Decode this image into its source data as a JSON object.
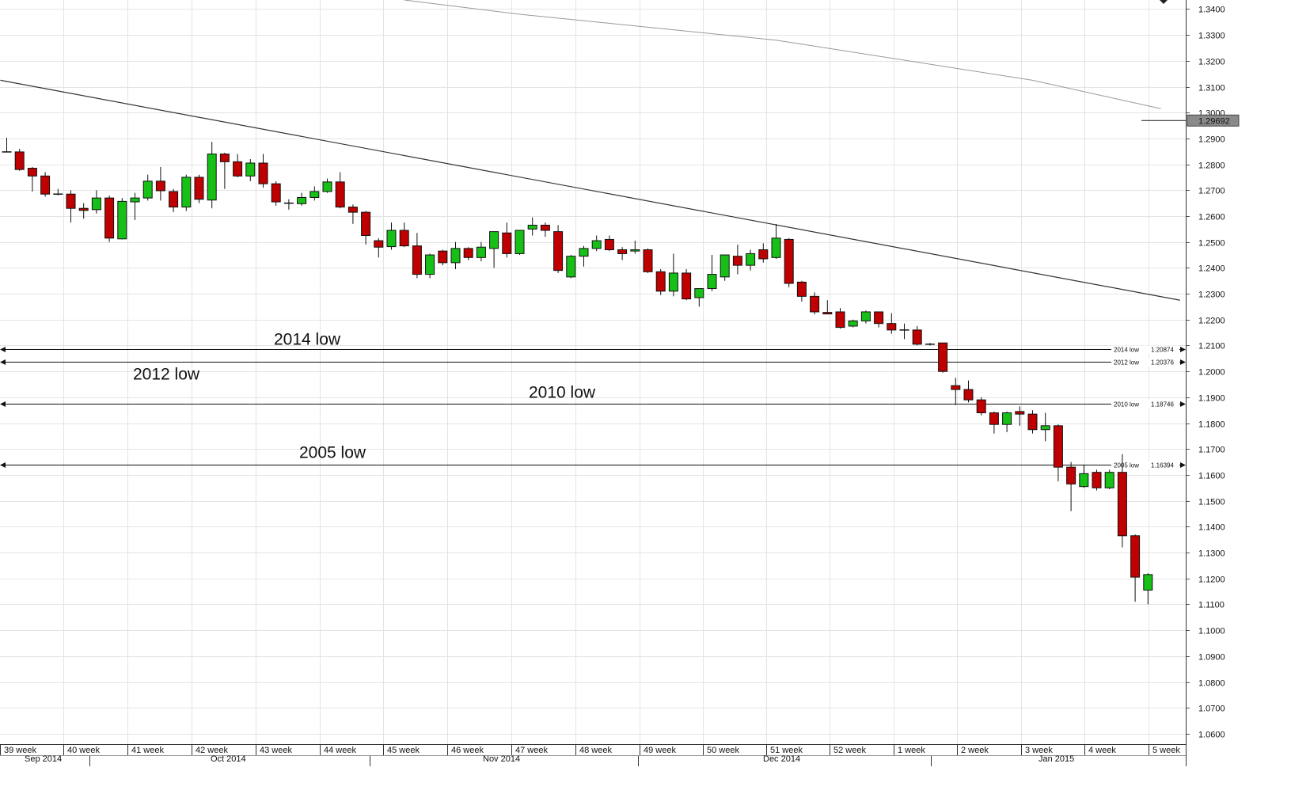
{
  "chart_data": {
    "type": "candlestick",
    "y_axis_ticks": [
      "1.3400",
      "1.3300",
      "1.3200",
      "1.3100",
      "1.3000",
      "1.2900",
      "1.2800",
      "1.2700",
      "1.2600",
      "1.2500",
      "1.2400",
      "1.2300",
      "1.2200",
      "1.2100",
      "1.2000",
      "1.1900",
      "1.1800",
      "1.1700",
      "1.1600",
      "1.1500",
      "1.1400",
      "1.1300",
      "1.1200",
      "1.1100",
      "1.1000",
      "1.0900",
      "1.0800",
      "1.0700",
      "1.0600"
    ],
    "ylim": [
      1.056,
      1.3435
    ],
    "week_labels": [
      "39 week",
      "40 week",
      "41 week",
      "42 week",
      "43 week",
      "44 week",
      "45 week",
      "46 week",
      "47 week",
      "48 week",
      "49 week",
      "50 week",
      "51 week",
      "52 week",
      "1 week",
      "2 week",
      "3 week",
      "4 week",
      "5 week"
    ],
    "month_labels": [
      "Sep 2014",
      "Oct 2014",
      "Nov 2014",
      "Dec 2014",
      "Jan 2015"
    ],
    "current_price": "1.29692",
    "levels": [
      {
        "label": "2014 low",
        "tag": "2014 low",
        "value": "1.20874",
        "price": 1.20874
      },
      {
        "label": "2012 low",
        "tag": "2012 low",
        "value": "1.20376",
        "price": 1.20376
      },
      {
        "label": "2010 low",
        "tag": "2010 low",
        "value": "1.18746",
        "price": 1.18746
      },
      {
        "label": "2005 low",
        "tag": "2005 low",
        "value": "1.16394",
        "price": 1.16394
      }
    ],
    "trendline": {
      "from_index": -0.5,
      "from_price": 1.3125,
      "to_index": 91.5,
      "to_price": 1.2275
    },
    "moving_average": [
      [
        31,
        1.3435
      ],
      [
        40,
        1.338
      ],
      [
        60,
        1.328
      ],
      [
        80,
        1.3125
      ],
      [
        90,
        1.3015
      ],
      [
        88.5,
        1.2969
      ],
      [
        91.5,
        1.2969
      ]
    ],
    "candles": [
      {
        "o": 1.2848,
        "h": 1.2903,
        "l": 1.2848,
        "c": 1.2848
      },
      {
        "o": 1.2848,
        "h": 1.286,
        "l": 1.2775,
        "c": 1.278
      },
      {
        "o": 1.2785,
        "h": 1.279,
        "l": 1.2695,
        "c": 1.2755
      },
      {
        "o": 1.2755,
        "h": 1.277,
        "l": 1.2675,
        "c": 1.2685
      },
      {
        "o": 1.2685,
        "h": 1.2705,
        "l": 1.268,
        "c": 1.2683
      },
      {
        "o": 1.2685,
        "h": 1.27,
        "l": 1.2575,
        "c": 1.263
      },
      {
        "o": 1.263,
        "h": 1.265,
        "l": 1.259,
        "c": 1.2622
      },
      {
        "o": 1.2625,
        "h": 1.27,
        "l": 1.261,
        "c": 1.267
      },
      {
        "o": 1.267,
        "h": 1.268,
        "l": 1.25,
        "c": 1.2515
      },
      {
        "o": 1.2512,
        "h": 1.267,
        "l": 1.251,
        "c": 1.2657
      },
      {
        "o": 1.2655,
        "h": 1.269,
        "l": 1.2585,
        "c": 1.267
      },
      {
        "o": 1.267,
        "h": 1.276,
        "l": 1.266,
        "c": 1.2735
      },
      {
        "o": 1.2735,
        "h": 1.279,
        "l": 1.266,
        "c": 1.2698
      },
      {
        "o": 1.2695,
        "h": 1.2705,
        "l": 1.2615,
        "c": 1.2635
      },
      {
        "o": 1.2635,
        "h": 1.276,
        "l": 1.262,
        "c": 1.275
      },
      {
        "o": 1.275,
        "h": 1.276,
        "l": 1.265,
        "c": 1.2665
      },
      {
        "o": 1.2662,
        "h": 1.2887,
        "l": 1.263,
        "c": 1.284
      },
      {
        "o": 1.284,
        "h": 1.2845,
        "l": 1.2705,
        "c": 1.281
      },
      {
        "o": 1.281,
        "h": 1.284,
        "l": 1.275,
        "c": 1.2755
      },
      {
        "o": 1.2755,
        "h": 1.282,
        "l": 1.2735,
        "c": 1.2805
      },
      {
        "o": 1.2805,
        "h": 1.284,
        "l": 1.271,
        "c": 1.2725
      },
      {
        "o": 1.2725,
        "h": 1.2735,
        "l": 1.264,
        "c": 1.2655
      },
      {
        "o": 1.265,
        "h": 1.2665,
        "l": 1.2625,
        "c": 1.2648
      },
      {
        "o": 1.2648,
        "h": 1.269,
        "l": 1.264,
        "c": 1.2672
      },
      {
        "o": 1.2672,
        "h": 1.2715,
        "l": 1.266,
        "c": 1.2695
      },
      {
        "o": 1.2695,
        "h": 1.2745,
        "l": 1.269,
        "c": 1.2732
      },
      {
        "o": 1.2732,
        "h": 1.277,
        "l": 1.263,
        "c": 1.2635
      },
      {
        "o": 1.2635,
        "h": 1.2645,
        "l": 1.257,
        "c": 1.2615
      },
      {
        "o": 1.2615,
        "h": 1.262,
        "l": 1.249,
        "c": 1.2525
      },
      {
        "o": 1.2505,
        "h": 1.2515,
        "l": 1.244,
        "c": 1.248
      },
      {
        "o": 1.2482,
        "h": 1.2575,
        "l": 1.247,
        "c": 1.2545
      },
      {
        "o": 1.2545,
        "h": 1.2575,
        "l": 1.248,
        "c": 1.2485
      },
      {
        "o": 1.2485,
        "h": 1.2535,
        "l": 1.236,
        "c": 1.2375
      },
      {
        "o": 1.2375,
        "h": 1.2455,
        "l": 1.236,
        "c": 1.245
      },
      {
        "o": 1.2465,
        "h": 1.247,
        "l": 1.241,
        "c": 1.242
      },
      {
        "o": 1.242,
        "h": 1.25,
        "l": 1.2395,
        "c": 1.2475
      },
      {
        "o": 1.2475,
        "h": 1.248,
        "l": 1.243,
        "c": 1.244
      },
      {
        "o": 1.244,
        "h": 1.25,
        "l": 1.2425,
        "c": 1.248
      },
      {
        "o": 1.2475,
        "h": 1.254,
        "l": 1.24,
        "c": 1.254
      },
      {
        "o": 1.2535,
        "h": 1.2575,
        "l": 1.244,
        "c": 1.2455
      },
      {
        "o": 1.2455,
        "h": 1.2545,
        "l": 1.245,
        "c": 1.2545
      },
      {
        "o": 1.255,
        "h": 1.2595,
        "l": 1.2525,
        "c": 1.2565
      },
      {
        "o": 1.2565,
        "h": 1.2575,
        "l": 1.252,
        "c": 1.2545
      },
      {
        "o": 1.254,
        "h": 1.2565,
        "l": 1.238,
        "c": 1.239
      },
      {
        "o": 1.2365,
        "h": 1.245,
        "l": 1.236,
        "c": 1.2445
      },
      {
        "o": 1.2445,
        "h": 1.2485,
        "l": 1.2405,
        "c": 1.2475
      },
      {
        "o": 1.2475,
        "h": 1.2525,
        "l": 1.2465,
        "c": 1.2505
      },
      {
        "o": 1.251,
        "h": 1.2525,
        "l": 1.2465,
        "c": 1.247
      },
      {
        "o": 1.247,
        "h": 1.248,
        "l": 1.243,
        "c": 1.2455
      },
      {
        "o": 1.2465,
        "h": 1.2505,
        "l": 1.2455,
        "c": 1.247
      },
      {
        "o": 1.247,
        "h": 1.2475,
        "l": 1.238,
        "c": 1.2385
      },
      {
        "o": 1.2385,
        "h": 1.2395,
        "l": 1.2295,
        "c": 1.231
      },
      {
        "o": 1.231,
        "h": 1.2455,
        "l": 1.229,
        "c": 1.238
      },
      {
        "o": 1.238,
        "h": 1.2395,
        "l": 1.2275,
        "c": 1.228
      },
      {
        "o": 1.2285,
        "h": 1.232,
        "l": 1.225,
        "c": 1.232
      },
      {
        "o": 1.232,
        "h": 1.245,
        "l": 1.231,
        "c": 1.2375
      },
      {
        "o": 1.2365,
        "h": 1.245,
        "l": 1.235,
        "c": 1.245
      },
      {
        "o": 1.2445,
        "h": 1.249,
        "l": 1.2375,
        "c": 1.241
      },
      {
        "o": 1.241,
        "h": 1.247,
        "l": 1.239,
        "c": 1.2455
      },
      {
        "o": 1.247,
        "h": 1.2495,
        "l": 1.242,
        "c": 1.2435
      },
      {
        "o": 1.244,
        "h": 1.257,
        "l": 1.2435,
        "c": 1.2515
      },
      {
        "o": 1.251,
        "h": 1.2515,
        "l": 1.2325,
        "c": 1.234
      },
      {
        "o": 1.2345,
        "h": 1.235,
        "l": 1.227,
        "c": 1.229
      },
      {
        "o": 1.229,
        "h": 1.2305,
        "l": 1.222,
        "c": 1.223
      },
      {
        "o": 1.2228,
        "h": 1.2275,
        "l": 1.222,
        "c": 1.2222
      },
      {
        "o": 1.223,
        "h": 1.2245,
        "l": 1.2165,
        "c": 1.217
      },
      {
        "o": 1.2175,
        "h": 1.22,
        "l": 1.217,
        "c": 1.2195
      },
      {
        "o": 1.2195,
        "h": 1.2235,
        "l": 1.2185,
        "c": 1.223
      },
      {
        "o": 1.223,
        "h": 1.223,
        "l": 1.217,
        "c": 1.2185
      },
      {
        "o": 1.2185,
        "h": 1.2225,
        "l": 1.2145,
        "c": 1.216
      },
      {
        "o": 1.216,
        "h": 1.2185,
        "l": 1.2125,
        "c": 1.216
      },
      {
        "o": 1.216,
        "h": 1.2175,
        "l": 1.21,
        "c": 1.2105
      },
      {
        "o": 1.2105,
        "h": 1.211,
        "l": 1.21,
        "c": 1.2105
      },
      {
        "o": 1.211,
        "h": 1.211,
        "l": 1.1995,
        "c": 1.2
      },
      {
        "o": 1.1945,
        "h": 1.1975,
        "l": 1.187,
        "c": 1.193
      },
      {
        "o": 1.193,
        "h": 1.1965,
        "l": 1.188,
        "c": 1.189
      },
      {
        "o": 1.189,
        "h": 1.19,
        "l": 1.183,
        "c": 1.184
      },
      {
        "o": 1.184,
        "h": 1.1845,
        "l": 1.176,
        "c": 1.1795
      },
      {
        "o": 1.1795,
        "h": 1.1845,
        "l": 1.1765,
        "c": 1.184
      },
      {
        "o": 1.1845,
        "h": 1.1865,
        "l": 1.179,
        "c": 1.1835
      },
      {
        "o": 1.1835,
        "h": 1.185,
        "l": 1.176,
        "c": 1.1775
      },
      {
        "o": 1.1775,
        "h": 1.184,
        "l": 1.173,
        "c": 1.179
      },
      {
        "o": 1.179,
        "h": 1.1795,
        "l": 1.1575,
        "c": 1.163
      },
      {
        "o": 1.163,
        "h": 1.165,
        "l": 1.146,
        "c": 1.1565
      },
      {
        "o": 1.1555,
        "h": 1.164,
        "l": 1.155,
        "c": 1.1605
      },
      {
        "o": 1.161,
        "h": 1.162,
        "l": 1.154,
        "c": 1.155
      },
      {
        "o": 1.155,
        "h": 1.162,
        "l": 1.1545,
        "c": 1.161
      },
      {
        "o": 1.161,
        "h": 1.168,
        "l": 1.132,
        "c": 1.1365
      },
      {
        "o": 1.1365,
        "h": 1.137,
        "l": 1.111,
        "c": 1.1205
      },
      {
        "o": 1.1155,
        "h": 1.122,
        "l": 1.11,
        "c": 1.1215
      }
    ],
    "labels_text": [
      "2014 low",
      "2012 low",
      "2010 low",
      "2005 low"
    ]
  }
}
